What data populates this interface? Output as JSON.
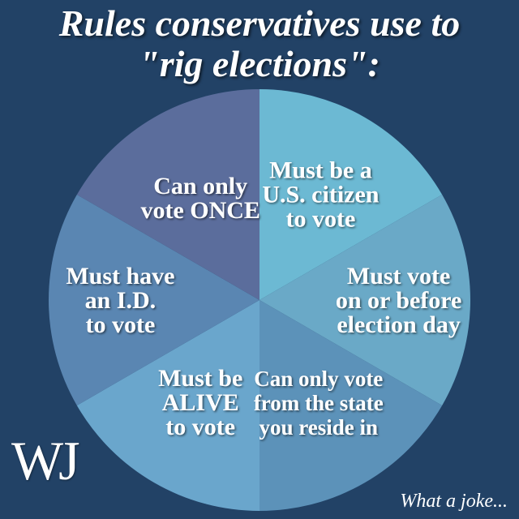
{
  "title": {
    "line1": "Rules conservatives use to",
    "line2": "\"rig elections\":"
  },
  "chart_data": {
    "type": "pie",
    "slices": [
      {
        "label": [
          "Must be a",
          "U.S. citizen",
          "to vote"
        ],
        "value": 1,
        "color": "#6cb9d3"
      },
      {
        "label": [
          "Must vote",
          "on or before",
          "election day"
        ],
        "value": 1,
        "color": "#6aa9c7"
      },
      {
        "label": [
          "Can only vote",
          "from the state",
          "you reside in"
        ],
        "value": 1,
        "color": "#5c92b9"
      },
      {
        "label": [
          "Must be",
          "ALIVE",
          "to vote"
        ],
        "value": 1,
        "color": "#6aa6cc"
      },
      {
        "label": [
          "Must have",
          "an I.D.",
          "to vote"
        ],
        "value": 1,
        "color": "#5a86b2"
      },
      {
        "label": [
          "Can only",
          "vote ONCE"
        ],
        "value": 1,
        "color": "#5b6d9c"
      }
    ]
  },
  "logo": {
    "text": "WJ"
  },
  "footer": {
    "text": "What a joke..."
  }
}
